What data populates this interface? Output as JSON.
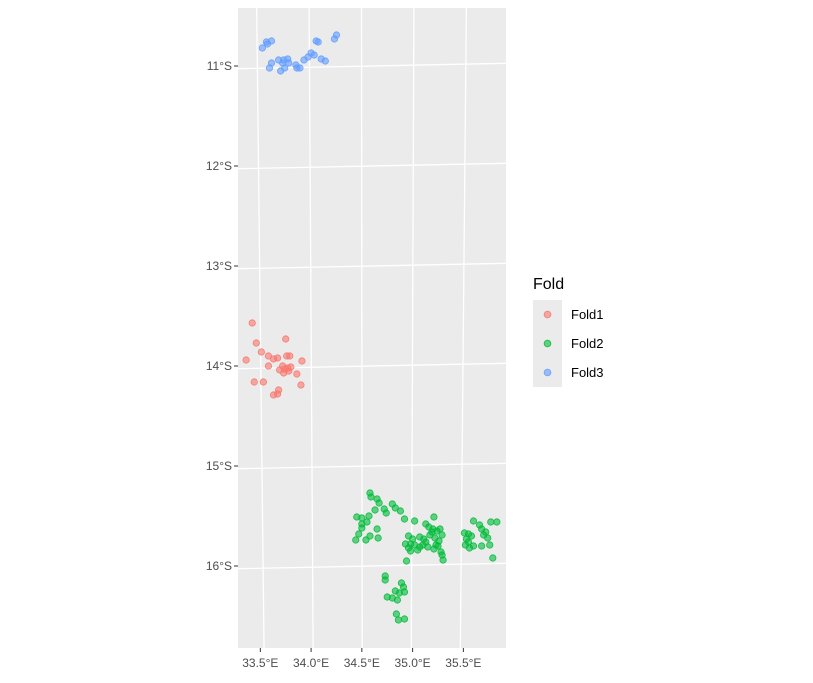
{
  "chart_data": {
    "type": "scatter",
    "title": "",
    "xlabel": "",
    "ylabel": "",
    "x_unit": "longitude (degrees E)",
    "y_unit": "latitude (degrees, negative = S)",
    "xlim": [
      33.28,
      35.92
    ],
    "ylim": [
      -16.82,
      -10.42
    ],
    "grid": true,
    "panel_background": "#ebebeb",
    "x_ticks": [
      {
        "value": 33.5,
        "label": "33.5°E"
      },
      {
        "value": 34.0,
        "label": "34.0°E"
      },
      {
        "value": 34.5,
        "label": "34.5°E"
      },
      {
        "value": 35.0,
        "label": "35.0°E"
      },
      {
        "value": 35.5,
        "label": "35.5°E"
      }
    ],
    "y_ticks": [
      {
        "value": -11,
        "label": "11°S"
      },
      {
        "value": -12,
        "label": "12°S"
      },
      {
        "value": -13,
        "label": "13°S"
      },
      {
        "value": -14,
        "label": "14°S"
      },
      {
        "value": -15,
        "label": "15°S"
      },
      {
        "value": -16,
        "label": "16°S"
      }
    ],
    "legend": {
      "title": "Fold",
      "position": "right"
    },
    "series": [
      {
        "name": "Fold1",
        "color": "#f8766d",
        "points": [
          [
            33.42,
            -13.57
          ],
          [
            33.46,
            -13.77
          ],
          [
            33.51,
            -13.86
          ],
          [
            33.36,
            -13.94
          ],
          [
            33.58,
            -13.9
          ],
          [
            33.63,
            -13.93
          ],
          [
            33.67,
            -13.92
          ],
          [
            33.75,
            -13.73
          ],
          [
            33.76,
            -13.9
          ],
          [
            33.79,
            -13.9
          ],
          [
            33.91,
            -13.95
          ],
          [
            33.58,
            -14.0
          ],
          [
            33.72,
            -14.0
          ],
          [
            33.74,
            -14.03
          ],
          [
            33.77,
            -14.02
          ],
          [
            33.8,
            -14.01
          ],
          [
            33.78,
            -14.05
          ],
          [
            33.73,
            -14.07
          ],
          [
            33.69,
            -14.04
          ],
          [
            33.86,
            -14.08
          ],
          [
            33.44,
            -14.16
          ],
          [
            33.53,
            -14.16
          ],
          [
            33.9,
            -14.19
          ],
          [
            33.68,
            -14.24
          ],
          [
            33.63,
            -14.29
          ],
          [
            33.67,
            -14.28
          ]
        ]
      },
      {
        "name": "Fold2",
        "color": "#00ba38",
        "points": [
          [
            34.58,
            -15.27
          ],
          [
            34.59,
            -15.31
          ],
          [
            34.65,
            -15.33
          ],
          [
            34.67,
            -15.37
          ],
          [
            34.72,
            -15.43
          ],
          [
            34.8,
            -15.38
          ],
          [
            34.83,
            -15.42
          ],
          [
            34.88,
            -15.45
          ],
          [
            34.74,
            -15.47
          ],
          [
            34.63,
            -15.44
          ],
          [
            34.57,
            -15.5
          ],
          [
            34.5,
            -15.52
          ],
          [
            34.45,
            -15.51
          ],
          [
            34.5,
            -15.58
          ],
          [
            34.55,
            -15.56
          ],
          [
            34.92,
            -15.53
          ],
          [
            35.02,
            -15.55
          ],
          [
            35.21,
            -15.51
          ],
          [
            35.13,
            -15.58
          ],
          [
            35.16,
            -15.61
          ],
          [
            35.2,
            -15.63
          ],
          [
            35.24,
            -15.65
          ],
          [
            35.27,
            -15.63
          ],
          [
            35.19,
            -15.66
          ],
          [
            34.5,
            -15.62
          ],
          [
            34.65,
            -15.63
          ],
          [
            34.47,
            -15.68
          ],
          [
            34.58,
            -15.7
          ],
          [
            34.66,
            -15.72
          ],
          [
            34.54,
            -15.74
          ],
          [
            34.44,
            -15.74
          ],
          [
            34.96,
            -15.7
          ],
          [
            35.0,
            -15.73
          ],
          [
            35.07,
            -15.71
          ],
          [
            35.11,
            -15.73
          ],
          [
            35.13,
            -15.76
          ],
          [
            35.17,
            -15.69
          ],
          [
            35.22,
            -15.72
          ],
          [
            35.26,
            -15.75
          ],
          [
            35.29,
            -15.69
          ],
          [
            35.15,
            -15.81
          ],
          [
            35.23,
            -15.79
          ],
          [
            35.25,
            -15.8
          ],
          [
            35.21,
            -15.83
          ],
          [
            35.28,
            -15.86
          ],
          [
            35.07,
            -15.81
          ],
          [
            35.05,
            -15.84
          ],
          [
            34.98,
            -15.78
          ],
          [
            34.93,
            -15.78
          ],
          [
            34.96,
            -15.82
          ],
          [
            35.1,
            -15.79
          ],
          [
            35.02,
            -15.79
          ],
          [
            34.98,
            -15.85
          ],
          [
            35.29,
            -15.89
          ],
          [
            35.3,
            -15.94
          ],
          [
            34.94,
            -15.95
          ],
          [
            35.51,
            -15.67
          ],
          [
            35.55,
            -15.68
          ],
          [
            35.6,
            -15.55
          ],
          [
            35.66,
            -15.59
          ],
          [
            35.68,
            -15.63
          ],
          [
            35.72,
            -15.66
          ],
          [
            35.7,
            -15.69
          ],
          [
            35.74,
            -15.72
          ],
          [
            35.58,
            -15.7
          ],
          [
            35.53,
            -15.73
          ],
          [
            35.55,
            -15.76
          ],
          [
            35.52,
            -15.79
          ],
          [
            35.6,
            -15.8
          ],
          [
            35.68,
            -15.8
          ],
          [
            35.76,
            -15.79
          ],
          [
            35.56,
            -15.82
          ],
          [
            35.77,
            -15.56
          ],
          [
            35.83,
            -15.56
          ],
          [
            35.79,
            -15.92
          ],
          [
            34.73,
            -16.1
          ],
          [
            34.73,
            -16.14
          ],
          [
            34.89,
            -16.17
          ],
          [
            34.91,
            -16.21
          ],
          [
            34.83,
            -16.25
          ],
          [
            34.87,
            -16.27
          ],
          [
            34.92,
            -16.26
          ],
          [
            34.75,
            -16.31
          ],
          [
            34.8,
            -16.32
          ],
          [
            34.85,
            -16.34
          ],
          [
            34.84,
            -16.48
          ],
          [
            34.86,
            -16.54
          ],
          [
            34.92,
            -16.53
          ]
        ]
      },
      {
        "name": "Fold3",
        "color": "#619cff",
        "points": [
          [
            33.56,
            -10.76
          ],
          [
            33.61,
            -10.75
          ],
          [
            33.52,
            -10.82
          ],
          [
            33.57,
            -10.78
          ],
          [
            34.25,
            -10.69
          ],
          [
            34.23,
            -10.73
          ],
          [
            34.05,
            -10.75
          ],
          [
            34.07,
            -10.76
          ],
          [
            34.0,
            -10.87
          ],
          [
            34.03,
            -10.89
          ],
          [
            33.97,
            -10.91
          ],
          [
            33.93,
            -10.94
          ],
          [
            34.1,
            -10.93
          ],
          [
            34.14,
            -10.95
          ],
          [
            33.68,
            -10.94
          ],
          [
            33.73,
            -10.94
          ],
          [
            33.77,
            -10.93
          ],
          [
            33.78,
            -10.97
          ],
          [
            33.72,
            -10.97
          ],
          [
            33.61,
            -10.97
          ],
          [
            33.59,
            -11.02
          ],
          [
            33.74,
            -11.02
          ],
          [
            33.85,
            -10.99
          ],
          [
            33.86,
            -11.02
          ],
          [
            33.89,
            -11.02
          ],
          [
            33.7,
            -11.05
          ]
        ]
      }
    ]
  }
}
